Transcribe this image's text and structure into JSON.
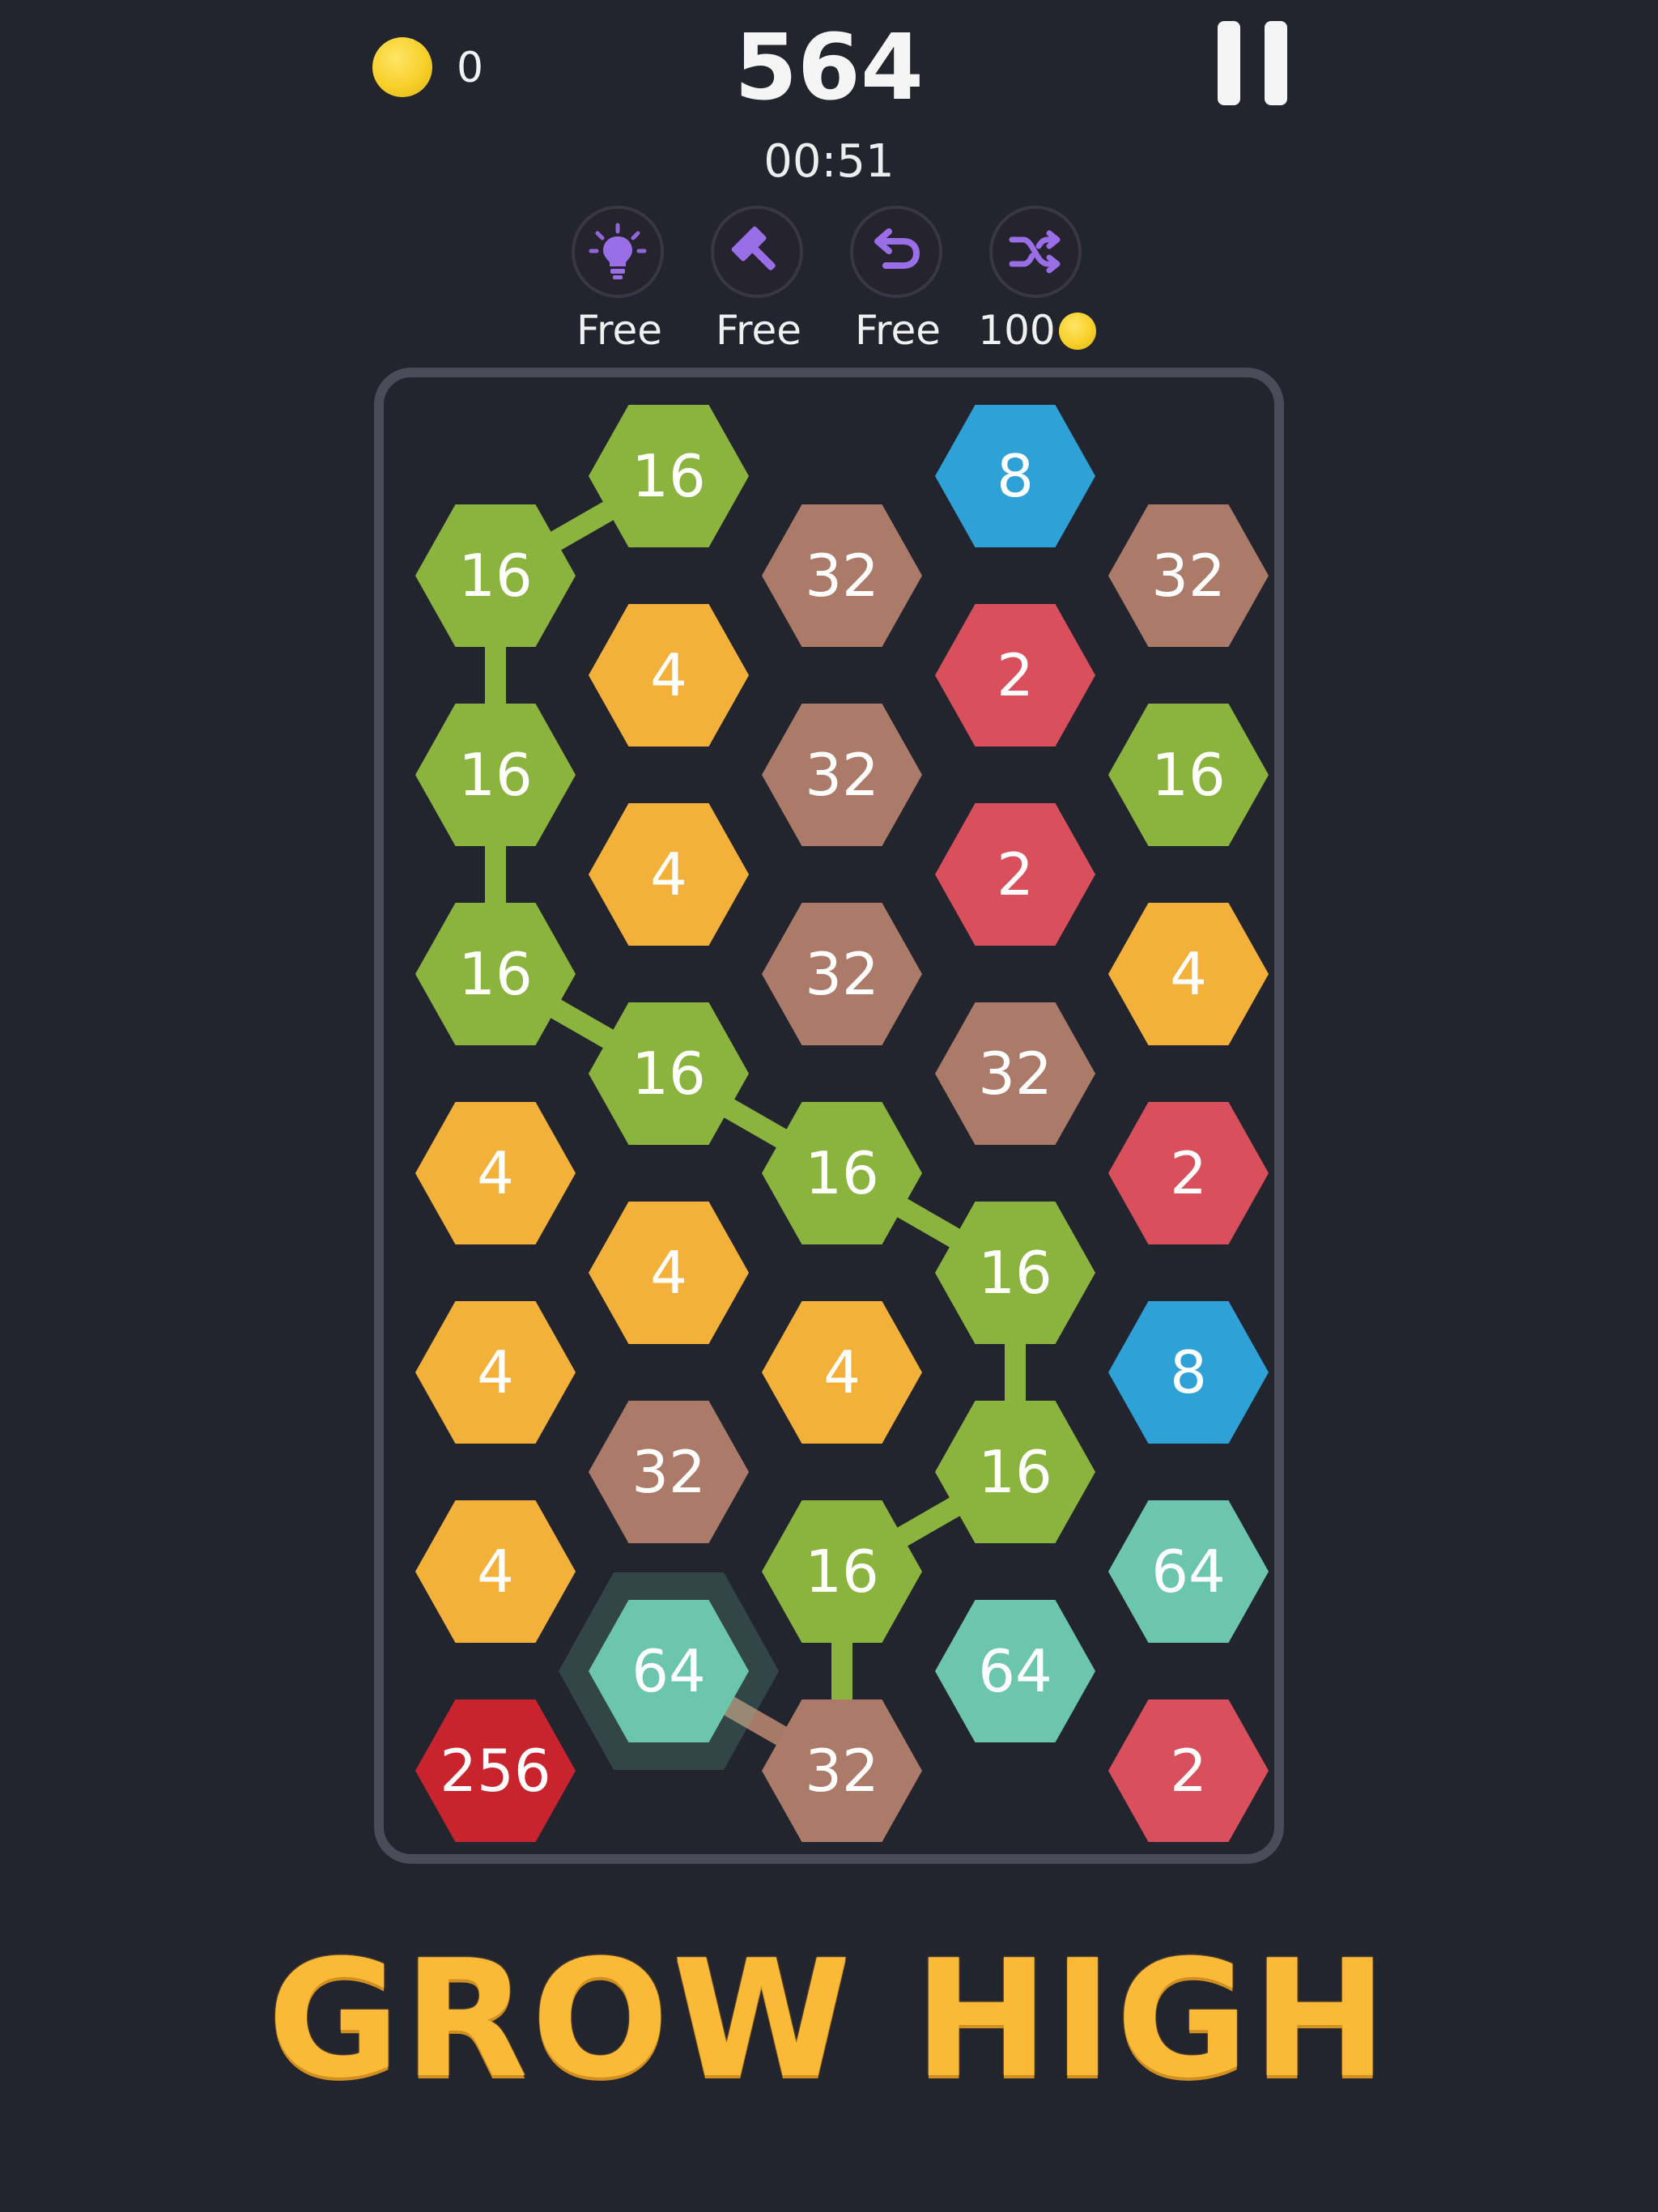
{
  "header": {
    "coin_count": "0",
    "score": "564",
    "timer": "00:51"
  },
  "tools": [
    {
      "name": "hint",
      "icon": "lightbulb-icon",
      "label": "Free"
    },
    {
      "name": "hammer",
      "icon": "hammer-icon",
      "label": "Free"
    },
    {
      "name": "undo",
      "icon": "undo-icon",
      "label": "Free"
    },
    {
      "name": "shuffle",
      "icon": "shuffle-icon",
      "label": "100"
    }
  ],
  "tile_colors": {
    "2": "#d94f5c",
    "4": "#f3b13a",
    "8": "#2ea1d6",
    "16": "#8bb43f",
    "32": "#ab7a68",
    "64": "#6cc6ad",
    "256": "#c9242d"
  },
  "board": {
    "columns": 5,
    "tiles": [
      {
        "col": 0,
        "row": 1,
        "value": "16"
      },
      {
        "col": 0,
        "row": 3,
        "value": "16"
      },
      {
        "col": 0,
        "row": 5,
        "value": "16"
      },
      {
        "col": 0,
        "row": 7,
        "value": "4"
      },
      {
        "col": 0,
        "row": 9,
        "value": "4"
      },
      {
        "col": 0,
        "row": 11,
        "value": "4"
      },
      {
        "col": 0,
        "row": 13,
        "value": "256"
      },
      {
        "col": 1,
        "row": 0,
        "value": "16"
      },
      {
        "col": 1,
        "row": 2,
        "value": "4"
      },
      {
        "col": 1,
        "row": 4,
        "value": "4"
      },
      {
        "col": 1,
        "row": 6,
        "value": "16"
      },
      {
        "col": 1,
        "row": 8,
        "value": "4"
      },
      {
        "col": 1,
        "row": 10,
        "value": "32"
      },
      {
        "col": 1,
        "row": 12,
        "value": "64",
        "selected": true
      },
      {
        "col": 2,
        "row": 1,
        "value": "32"
      },
      {
        "col": 2,
        "row": 3,
        "value": "32"
      },
      {
        "col": 2,
        "row": 5,
        "value": "32"
      },
      {
        "col": 2,
        "row": 7,
        "value": "16"
      },
      {
        "col": 2,
        "row": 9,
        "value": "4"
      },
      {
        "col": 2,
        "row": 11,
        "value": "16"
      },
      {
        "col": 2,
        "row": 13,
        "value": "32"
      },
      {
        "col": 3,
        "row": 0,
        "value": "8"
      },
      {
        "col": 3,
        "row": 2,
        "value": "2"
      },
      {
        "col": 3,
        "row": 4,
        "value": "2"
      },
      {
        "col": 3,
        "row": 6,
        "value": "32"
      },
      {
        "col": 3,
        "row": 8,
        "value": "16"
      },
      {
        "col": 3,
        "row": 10,
        "value": "16"
      },
      {
        "col": 3,
        "row": 12,
        "value": "64"
      },
      {
        "col": 4,
        "row": 1,
        "value": "32"
      },
      {
        "col": 4,
        "row": 3,
        "value": "16"
      },
      {
        "col": 4,
        "row": 5,
        "value": "4"
      },
      {
        "col": 4,
        "row": 7,
        "value": "2"
      },
      {
        "col": 4,
        "row": 9,
        "value": "8"
      },
      {
        "col": 4,
        "row": 11,
        "value": "64"
      },
      {
        "col": 4,
        "row": 13,
        "value": "2"
      }
    ],
    "chain": [
      [
        1,
        0
      ],
      [
        0,
        1
      ],
      [
        0,
        3
      ],
      [
        0,
        5
      ],
      [
        1,
        6
      ],
      [
        2,
        7
      ],
      [
        3,
        8
      ],
      [
        3,
        10
      ],
      [
        2,
        11
      ],
      [
        2,
        13
      ],
      [
        1,
        12
      ]
    ],
    "chain_color": "#8bb43f",
    "chain_tail_color": "#a57a67"
  },
  "title": "GROW HIGH"
}
